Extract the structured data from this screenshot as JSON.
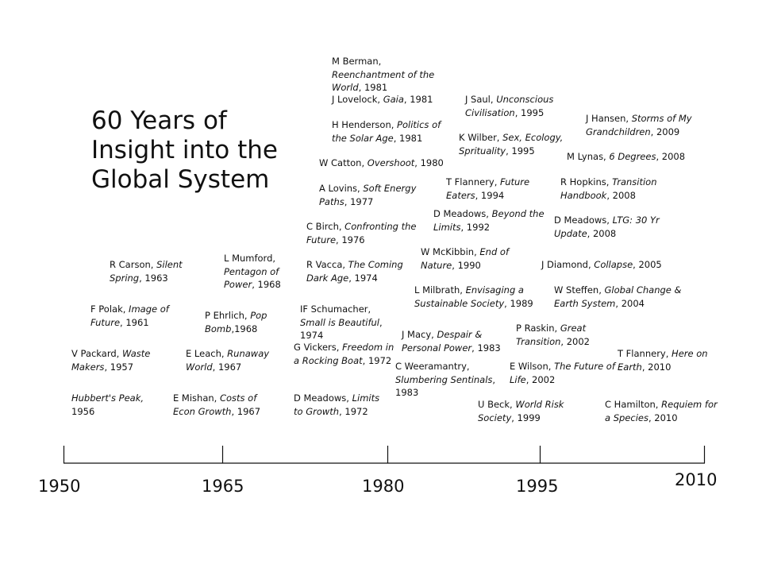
{
  "title": "60 Years of Insight into the Global System",
  "axis": {
    "years": [
      "1950",
      "1965",
      "1980",
      "1995",
      "2010"
    ]
  },
  "entries": [
    {
      "author": "Hubbert's Peak, ",
      "title": "",
      "suffix": "1956",
      "prefix_italic": true
    },
    {
      "author": "V Packard, ",
      "title": "Waste Makers",
      "suffix": ", 1957"
    },
    {
      "author": "F Polak, ",
      "title": "Image of Future",
      "suffix": ", 1961"
    },
    {
      "author": "R Carson, ",
      "title": "Silent Spring",
      "suffix": ", 1963"
    },
    {
      "author": "E Mishan, ",
      "title": "Costs of Econ Growth",
      "suffix": ", 1967"
    },
    {
      "author": "E Leach, ",
      "title": "Runaway World",
      "suffix": ", 1967"
    },
    {
      "author": "P Ehrlich, ",
      "title": "Pop Bomb",
      "suffix": ",1968"
    },
    {
      "author": "L Mumford, ",
      "title": "Pentagon of Power",
      "suffix": ", 1968"
    },
    {
      "author": "D Meadows, ",
      "title": "Limits to Growth",
      "suffix": ", 1972"
    },
    {
      "author": "G Vickers, ",
      "title": "Freedom in a Rocking Boat",
      "suffix": ", 1972"
    },
    {
      "author": "IF Schumacher, ",
      "title": "Small is Beautiful",
      "suffix": ", 1974"
    },
    {
      "author": "R Vacca, ",
      "title": "The Coming Dark Age",
      "suffix": ", 1974"
    },
    {
      "author": "C Birch, ",
      "title": "Confronting the Future",
      "suffix": ", 1976"
    },
    {
      "author": "A Lovins, ",
      "title": "Soft Energy Paths",
      "suffix": ", 1977"
    },
    {
      "author": "W Catton, ",
      "title": "Overshoot",
      "suffix": ", 1980"
    },
    {
      "author": "H Henderson, ",
      "title": "Politics of the Solar Age",
      "suffix": ", 1981"
    },
    {
      "author": "J Lovelock, ",
      "title": "Gaia",
      "suffix": ", 1981"
    },
    {
      "author": "M Berman, ",
      "title": "Reenchantment of the World",
      "suffix": ", 1981"
    },
    {
      "author": "C Weeramantry, ",
      "title": "Slumbering Sentinals",
      "suffix": ", 1983"
    },
    {
      "author": "J Macy, ",
      "title": "Despair & Personal Power",
      "suffix": ", 1983"
    },
    {
      "author": "L Milbrath, ",
      "title": "Envisaging a Sustainable Society",
      "suffix": ", 1989"
    },
    {
      "author": "W McKibbin, ",
      "title": "End of Nature",
      "suffix": ", 1990"
    },
    {
      "author": "D Meadows, ",
      "title": "Beyond the Limits",
      "suffix": ", 1992"
    },
    {
      "author": "T Flannery, ",
      "title": "Future Eaters",
      "suffix": ", 1994"
    },
    {
      "author": "K Wilber, ",
      "title": "Sex, Ecology, Sprituality",
      "suffix": ", 1995"
    },
    {
      "author": "J Saul, ",
      "title": "Unconscious Civilisation",
      "suffix": ", 1995"
    },
    {
      "author": "U Beck, ",
      "title": "World Risk Society",
      "suffix": ", 1999"
    },
    {
      "author": "E Wilson, ",
      "title": "The Future of Life",
      "suffix": ", 2002"
    },
    {
      "author": "P Raskin, ",
      "title": "Great Transition",
      "suffix": ", 2002"
    },
    {
      "author": "W Steffen, ",
      "title": "Global Change & Earth System",
      "suffix": ", 2004"
    },
    {
      "author": "J Diamond, ",
      "title": "Collapse",
      "suffix": ", 2005"
    },
    {
      "author": "D Meadows, ",
      "title": "LTG: 30 Yr Update",
      "suffix": ", 2008"
    },
    {
      "author": "R Hopkins, ",
      "title": "Transition Handbook",
      "suffix": ", 2008"
    },
    {
      "author": "M Lynas, ",
      "title": "6 Degrees",
      "suffix": ", 2008"
    },
    {
      "author": "J Hansen, ",
      "title": "Storms of My Grandchildren",
      "suffix": ", 2009"
    },
    {
      "author": "C Hamilton, ",
      "title": "Requiem for a Species",
      "suffix": ", 2010"
    },
    {
      "author": "T Flannery, ",
      "title": "Here on Earth",
      "suffix": ", 2010"
    }
  ]
}
